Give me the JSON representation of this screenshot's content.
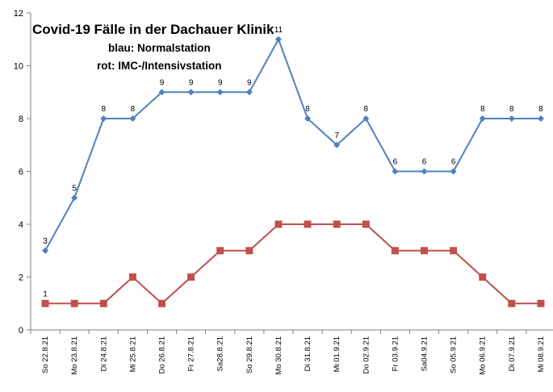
{
  "chart_data": {
    "type": "line",
    "title": "Covid-19 Fälle in  der Dachauer Klinik",
    "subtitle_lines": [
      "blau: Normalstation",
      "rot: IMC-/Intensivstation"
    ],
    "categories": [
      "So 22.8.21",
      "Mo 23.8.21",
      "Di 24.8.21",
      "Mi 25.8.21",
      "Do 26.8.21",
      "Fr 27.8.21",
      "Sa28.8.21",
      "So 29.8.21",
      "Mo 30.8.21",
      "Di 31.8.21",
      "Mi 01.9.21",
      "Do 02.9.21",
      "Fr 03.9.21",
      "Sa04.9.21",
      "So 05.9.21",
      "Mo 06.9.21",
      "Di 07.9.21",
      "Mi 08.9.21"
    ],
    "ylim": [
      0,
      12
    ],
    "yticks": [
      "0",
      "2",
      "4",
      "6",
      "8",
      "10",
      "12"
    ],
    "grid": false,
    "series": [
      {
        "values": [
          3,
          5,
          8,
          8,
          9,
          9,
          9,
          9,
          11,
          8,
          7,
          8,
          6,
          6,
          6,
          8,
          8,
          8
        ],
        "color": "#4F81BD",
        "marker": "diamond",
        "labels": [
          "3",
          "5",
          "8",
          "8",
          "9",
          "9",
          "9",
          "9",
          "11",
          "8",
          "7",
          "8",
          "6",
          "6",
          "6",
          "8",
          "8",
          "8"
        ]
      },
      {
        "values": [
          1,
          1,
          1,
          2,
          1,
          2,
          3,
          3,
          4,
          4,
          4,
          4,
          3,
          3,
          3,
          2,
          1,
          1
        ],
        "color": "#C0504D",
        "marker": "square",
        "labels": [
          "1",
          "",
          "",
          "",
          "",
          "",
          "",
          "",
          "",
          "",
          "",
          "",
          "",
          "",
          "",
          "",
          "",
          ""
        ]
      }
    ]
  }
}
